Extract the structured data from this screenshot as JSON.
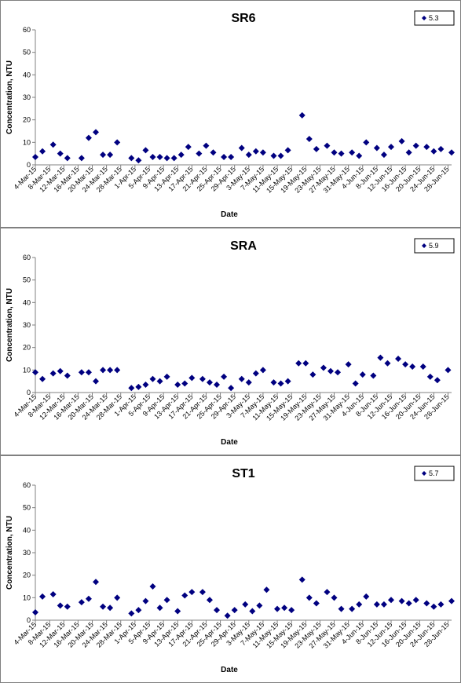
{
  "chart_data": [
    {
      "type": "scatter",
      "title": "SR6",
      "xlabel": "Date",
      "ylabel": "Concentration, NTU",
      "xlim": [
        "2015-03-04",
        "2015-06-29"
      ],
      "ylim": [
        0,
        60
      ],
      "yticks": [
        0,
        10,
        20,
        30,
        40,
        50,
        60
      ],
      "xticks": [
        {
          "value": "2015-03-04",
          "label": "4-Mar-15"
        },
        {
          "value": "2015-03-08",
          "label": "8-Mar-15"
        },
        {
          "value": "2015-03-12",
          "label": "12-Mar-15"
        },
        {
          "value": "2015-03-16",
          "label": "16-Mar-15"
        },
        {
          "value": "2015-03-20",
          "label": "20-Mar-15"
        },
        {
          "value": "2015-03-24",
          "label": "24-Mar-15"
        },
        {
          "value": "2015-03-28",
          "label": "28-Mar-15"
        },
        {
          "value": "2015-04-01",
          "label": "1-Apr-15"
        },
        {
          "value": "2015-04-05",
          "label": "5-Apr-15"
        },
        {
          "value": "2015-04-09",
          "label": "9-Apr-15"
        },
        {
          "value": "2015-04-13",
          "label": "13-Apr-15"
        },
        {
          "value": "2015-04-17",
          "label": "17-Apr-15"
        },
        {
          "value": "2015-04-21",
          "label": "21-Apr-15"
        },
        {
          "value": "2015-04-25",
          "label": "25-Apr-15"
        },
        {
          "value": "2015-04-29",
          "label": "29-Apr-15"
        },
        {
          "value": "2015-05-03",
          "label": "3-May-15"
        },
        {
          "value": "2015-05-07",
          "label": "7-May-15"
        },
        {
          "value": "2015-05-11",
          "label": "11-May-15"
        },
        {
          "value": "2015-05-15",
          "label": "15-May-15"
        },
        {
          "value": "2015-05-19",
          "label": "19-May-15"
        },
        {
          "value": "2015-05-23",
          "label": "23-May-15"
        },
        {
          "value": "2015-05-27",
          "label": "27-May-15"
        },
        {
          "value": "2015-05-31",
          "label": "31-May-15"
        },
        {
          "value": "2015-06-04",
          "label": "4-Jun-15"
        },
        {
          "value": "2015-06-08",
          "label": "8-Jun-15"
        },
        {
          "value": "2015-06-12",
          "label": "12-Jun-15"
        },
        {
          "value": "2015-06-16",
          "label": "16-Jun-15"
        },
        {
          "value": "2015-06-20",
          "label": "20-Jun-15"
        },
        {
          "value": "2015-06-24",
          "label": "24-Jun-15"
        },
        {
          "value": "2015-06-28",
          "label": "28-Jun-15"
        }
      ],
      "grid": false,
      "legend": "upper right",
      "series": [
        {
          "name": "5.3",
          "color": "#000080",
          "x": [
            "2015-03-04",
            "2015-03-06",
            "2015-03-09",
            "2015-03-11",
            "2015-03-13",
            "2015-03-17",
            "2015-03-19",
            "2015-03-21",
            "2015-03-23",
            "2015-03-25",
            "2015-03-27",
            "2015-03-31",
            "2015-04-02",
            "2015-04-04",
            "2015-04-06",
            "2015-04-08",
            "2015-04-10",
            "2015-04-12",
            "2015-04-14",
            "2015-04-16",
            "2015-04-19",
            "2015-04-21",
            "2015-04-23",
            "2015-04-26",
            "2015-04-28",
            "2015-05-01",
            "2015-05-03",
            "2015-05-05",
            "2015-05-07",
            "2015-05-10",
            "2015-05-12",
            "2015-05-14",
            "2015-05-18",
            "2015-05-20",
            "2015-05-22",
            "2015-05-25",
            "2015-05-27",
            "2015-05-29",
            "2015-06-01",
            "2015-06-03",
            "2015-06-05",
            "2015-06-08",
            "2015-06-10",
            "2015-06-12",
            "2015-06-15",
            "2015-06-17",
            "2015-06-19",
            "2015-06-22",
            "2015-06-24",
            "2015-06-26",
            "2015-06-29"
          ],
          "values": [
            3.5,
            6,
            9,
            5,
            3,
            3,
            12,
            14.5,
            4.5,
            4.5,
            10,
            3,
            2,
            6.5,
            3.5,
            3.5,
            3,
            3,
            4.5,
            8,
            5,
            8.5,
            5.5,
            3.5,
            3.5,
            7.5,
            4.5,
            6,
            5.5,
            4,
            4,
            6.5,
            22,
            11.5,
            7,
            8.5,
            5.5,
            5,
            5.5,
            4,
            10,
            7.5,
            4.5,
            8,
            10.5,
            5.5,
            8.5,
            8,
            6,
            7,
            5.5
          ]
        }
      ]
    },
    {
      "type": "scatter",
      "title": "SRA",
      "xlabel": "Date",
      "ylabel": "Concentration, NTU",
      "xlim": [
        "2015-03-04",
        "2015-06-29"
      ],
      "ylim": [
        0,
        60
      ],
      "yticks": [
        0,
        10,
        20,
        30,
        40,
        50,
        60
      ],
      "xticks": [
        {
          "value": "2015-03-04",
          "label": "4-Mar-15"
        },
        {
          "value": "2015-03-08",
          "label": "8-Mar-15"
        },
        {
          "value": "2015-03-12",
          "label": "12-Mar-15"
        },
        {
          "value": "2015-03-16",
          "label": "16-Mar-15"
        },
        {
          "value": "2015-03-20",
          "label": "20-Mar-15"
        },
        {
          "value": "2015-03-24",
          "label": "24-Mar-15"
        },
        {
          "value": "2015-03-28",
          "label": "28-Mar-15"
        },
        {
          "value": "2015-04-01",
          "label": "1-Apr-15"
        },
        {
          "value": "2015-04-05",
          "label": "5-Apr-15"
        },
        {
          "value": "2015-04-09",
          "label": "9-Apr-15"
        },
        {
          "value": "2015-04-13",
          "label": "13-Apr-15"
        },
        {
          "value": "2015-04-17",
          "label": "17-Apr-15"
        },
        {
          "value": "2015-04-21",
          "label": "21-Apr-15"
        },
        {
          "value": "2015-04-25",
          "label": "25-Apr-15"
        },
        {
          "value": "2015-04-29",
          "label": "29-Apr-15"
        },
        {
          "value": "2015-05-03",
          "label": "3-May-15"
        },
        {
          "value": "2015-05-07",
          "label": "7-May-15"
        },
        {
          "value": "2015-05-11",
          "label": "11-May-15"
        },
        {
          "value": "2015-05-15",
          "label": "15-May-15"
        },
        {
          "value": "2015-05-19",
          "label": "19-May-15"
        },
        {
          "value": "2015-05-23",
          "label": "23-May-15"
        },
        {
          "value": "2015-05-27",
          "label": "27-May-15"
        },
        {
          "value": "2015-05-31",
          "label": "31-May-15"
        },
        {
          "value": "2015-06-04",
          "label": "4-Jun-15"
        },
        {
          "value": "2015-06-08",
          "label": "8-Jun-15"
        },
        {
          "value": "2015-06-12",
          "label": "12-Jun-15"
        },
        {
          "value": "2015-06-16",
          "label": "16-Jun-15"
        },
        {
          "value": "2015-06-20",
          "label": "20-Jun-15"
        },
        {
          "value": "2015-06-24",
          "label": "24-Jun-15"
        },
        {
          "value": "2015-06-28",
          "label": "28-Jun-15"
        }
      ],
      "grid": false,
      "legend": "upper right",
      "series": [
        {
          "name": "5.9",
          "color": "#000080",
          "x": [
            "2015-03-04",
            "2015-03-06",
            "2015-03-09",
            "2015-03-11",
            "2015-03-13",
            "2015-03-17",
            "2015-03-19",
            "2015-03-21",
            "2015-03-23",
            "2015-03-25",
            "2015-03-27",
            "2015-03-31",
            "2015-04-02",
            "2015-04-04",
            "2015-04-06",
            "2015-04-08",
            "2015-04-10",
            "2015-04-13",
            "2015-04-15",
            "2015-04-17",
            "2015-04-20",
            "2015-04-22",
            "2015-04-24",
            "2015-04-26",
            "2015-04-28",
            "2015-05-01",
            "2015-05-03",
            "2015-05-05",
            "2015-05-07",
            "2015-05-10",
            "2015-05-12",
            "2015-05-14",
            "2015-05-17",
            "2015-05-19",
            "2015-05-21",
            "2015-05-24",
            "2015-05-26",
            "2015-05-28",
            "2015-05-31",
            "2015-06-02",
            "2015-06-04",
            "2015-06-07",
            "2015-06-09",
            "2015-06-11",
            "2015-06-14",
            "2015-06-16",
            "2015-06-18",
            "2015-06-21",
            "2015-06-23",
            "2015-06-25",
            "2015-06-28"
          ],
          "values": [
            9,
            6,
            8.5,
            9.5,
            7.5,
            9,
            9,
            5,
            10,
            10,
            10,
            2,
            2.5,
            3.5,
            6,
            5,
            7,
            3.5,
            4,
            6.5,
            6,
            4.5,
            3.5,
            7,
            2,
            6,
            4.5,
            8.5,
            10,
            4.5,
            4,
            5,
            13,
            13,
            8,
            11,
            9.5,
            9,
            12.5,
            4,
            8,
            7.5,
            15.5,
            13,
            15,
            12.5,
            11.5,
            11.5,
            7,
            5.5,
            10
          ]
        }
      ]
    },
    {
      "type": "scatter",
      "title": "ST1",
      "xlabel": "Date",
      "ylabel": "Concentration, NTU",
      "xlim": [
        "2015-03-04",
        "2015-06-29"
      ],
      "ylim": [
        0,
        60
      ],
      "yticks": [
        0,
        10,
        20,
        30,
        40,
        50,
        60
      ],
      "xticks": [
        {
          "value": "2015-03-04",
          "label": "4-Mar-15"
        },
        {
          "value": "2015-03-08",
          "label": "8-Mar-15"
        },
        {
          "value": "2015-03-12",
          "label": "12-Mar-15"
        },
        {
          "value": "2015-03-16",
          "label": "16-Mar-15"
        },
        {
          "value": "2015-03-20",
          "label": "20-Mar-15"
        },
        {
          "value": "2015-03-24",
          "label": "24-Mar-15"
        },
        {
          "value": "2015-03-28",
          "label": "28-Mar-15"
        },
        {
          "value": "2015-04-01",
          "label": "1-Apr-15"
        },
        {
          "value": "2015-04-05",
          "label": "5-Apr-15"
        },
        {
          "value": "2015-04-09",
          "label": "9-Apr-15"
        },
        {
          "value": "2015-04-13",
          "label": "13-Apr-15"
        },
        {
          "value": "2015-04-17",
          "label": "17-Apr-15"
        },
        {
          "value": "2015-04-21",
          "label": "21-Apr-15"
        },
        {
          "value": "2015-04-25",
          "label": "25-Apr-15"
        },
        {
          "value": "2015-04-29",
          "label": "29-Apr-15"
        },
        {
          "value": "2015-05-03",
          "label": "3-May-15"
        },
        {
          "value": "2015-05-07",
          "label": "7-May-15"
        },
        {
          "value": "2015-05-11",
          "label": "11-May-15"
        },
        {
          "value": "2015-05-15",
          "label": "15-May-15"
        },
        {
          "value": "2015-05-19",
          "label": "19-May-15"
        },
        {
          "value": "2015-05-23",
          "label": "23-May-15"
        },
        {
          "value": "2015-05-27",
          "label": "27-May-15"
        },
        {
          "value": "2015-05-31",
          "label": "31-May-15"
        },
        {
          "value": "2015-06-04",
          "label": "4-Jun-15"
        },
        {
          "value": "2015-06-08",
          "label": "8-Jun-15"
        },
        {
          "value": "2015-06-12",
          "label": "12-Jun-15"
        },
        {
          "value": "2015-06-16",
          "label": "16-Jun-15"
        },
        {
          "value": "2015-06-20",
          "label": "20-Jun-15"
        },
        {
          "value": "2015-06-24",
          "label": "24-Jun-15"
        },
        {
          "value": "2015-06-28",
          "label": "28-Jun-15"
        }
      ],
      "grid": false,
      "legend": "upper right",
      "series": [
        {
          "name": "5.7",
          "color": "#000080",
          "x": [
            "2015-03-04",
            "2015-03-06",
            "2015-03-09",
            "2015-03-11",
            "2015-03-13",
            "2015-03-17",
            "2015-03-19",
            "2015-03-21",
            "2015-03-23",
            "2015-03-25",
            "2015-03-27",
            "2015-03-31",
            "2015-04-02",
            "2015-04-04",
            "2015-04-06",
            "2015-04-08",
            "2015-04-10",
            "2015-04-13",
            "2015-04-15",
            "2015-04-17",
            "2015-04-20",
            "2015-04-22",
            "2015-04-24",
            "2015-04-27",
            "2015-04-29",
            "2015-05-02",
            "2015-05-04",
            "2015-05-06",
            "2015-05-08",
            "2015-05-11",
            "2015-05-13",
            "2015-05-15",
            "2015-05-18",
            "2015-05-20",
            "2015-05-22",
            "2015-05-25",
            "2015-05-27",
            "2015-05-29",
            "2015-06-01",
            "2015-06-03",
            "2015-06-05",
            "2015-06-08",
            "2015-06-10",
            "2015-06-12",
            "2015-06-15",
            "2015-06-17",
            "2015-06-19",
            "2015-06-22",
            "2015-06-24",
            "2015-06-26",
            "2015-06-29"
          ],
          "values": [
            3.5,
            10.5,
            11.5,
            6.5,
            6,
            8,
            9.5,
            17,
            6,
            5.5,
            10,
            3,
            4.5,
            8.5,
            15,
            5.5,
            9,
            4,
            11,
            12.5,
            12.5,
            9,
            4.5,
            2,
            4.5,
            7,
            4,
            6.5,
            13.5,
            5,
            5.5,
            4.5,
            18,
            10,
            7.5,
            12.5,
            10,
            5,
            5,
            7,
            10.5,
            7,
            7,
            9,
            8.5,
            7.5,
            9,
            7.5,
            6,
            7,
            8.5
          ]
        }
      ]
    }
  ]
}
